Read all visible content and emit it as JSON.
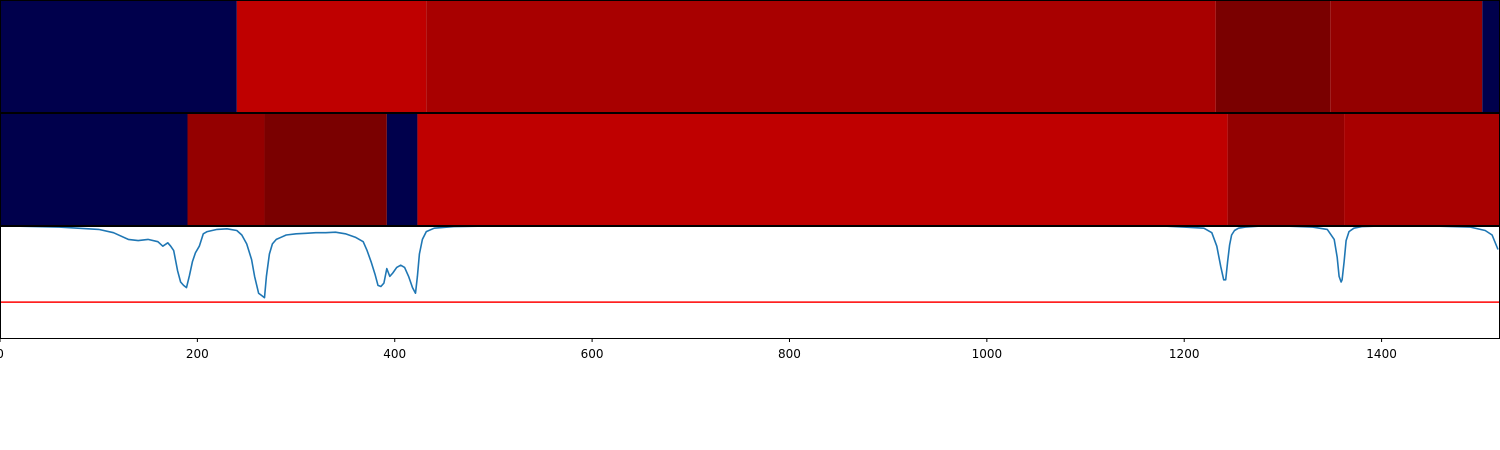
{
  "chart_data": {
    "type": "heatmap",
    "title": "",
    "xlabel": "",
    "ylabel": "",
    "xlim": [
      0,
      1520
    ],
    "grid": false,
    "legend": "none",
    "x_ticks": [
      0,
      200,
      400,
      600,
      800,
      1000,
      1200,
      1400
    ],
    "x_tick_labels": [
      "0",
      "200",
      "400",
      "600",
      "800",
      "1000",
      "1200",
      "1400"
    ],
    "heatmap_rows": [
      {
        "segments": [
          {
            "start": 0,
            "end": 240,
            "color": "#00004c"
          },
          {
            "start": 240,
            "end": 432,
            "color": "#bf0000"
          },
          {
            "start": 432,
            "end": 1232,
            "color": "#a80000"
          },
          {
            "start": 1232,
            "end": 1348,
            "color": "#7a0000"
          },
          {
            "start": 1348,
            "end": 1502,
            "color": "#940000"
          },
          {
            "start": 1502,
            "end": 1520,
            "color": "#00004c"
          }
        ]
      },
      {
        "segments": [
          {
            "start": 0,
            "end": 190,
            "color": "#00004c"
          },
          {
            "start": 190,
            "end": 268,
            "color": "#940000"
          },
          {
            "start": 268,
            "end": 392,
            "color": "#7a0000"
          },
          {
            "start": 392,
            "end": 423,
            "color": "#00004c"
          },
          {
            "start": 423,
            "end": 1244,
            "color": "#bf0000"
          },
          {
            "start": 1244,
            "end": 1362,
            "color": "#940000"
          },
          {
            "start": 1362,
            "end": 1520,
            "color": "#a80000"
          }
        ]
      }
    ],
    "line_panel": {
      "ylim": [
        0,
        1
      ],
      "threshold": 0.32,
      "threshold_color": "#ff0000",
      "series": [
        {
          "color": "#1f77b4",
          "x": [
            0,
            20,
            60,
            100,
            115,
            130,
            140,
            150,
            160,
            165,
            170,
            173,
            176,
            180,
            183,
            186,
            189,
            192,
            195,
            198,
            202,
            206,
            210,
            220,
            230,
            240,
            245,
            250,
            255,
            258,
            262,
            265,
            268,
            270,
            273,
            276,
            280,
            285,
            290,
            300,
            310,
            320,
            330,
            340,
            350,
            360,
            368,
            372,
            376,
            380,
            383,
            386,
            389,
            392,
            395,
            398,
            402,
            406,
            410,
            414,
            418,
            421,
            423,
            425,
            428,
            432,
            440,
            460,
            500,
            600,
            800,
            1000,
            1100,
            1180,
            1200,
            1220,
            1228,
            1233,
            1237,
            1240,
            1242,
            1244,
            1246,
            1248,
            1251,
            1255,
            1262,
            1275,
            1300,
            1330,
            1345,
            1352,
            1355,
            1357,
            1359,
            1360,
            1362,
            1364,
            1367,
            1372,
            1380,
            1400,
            1450,
            1490,
            1505,
            1512,
            1518
          ],
          "y": [
            0.999,
            0.998,
            0.99,
            0.97,
            0.94,
            0.88,
            0.87,
            0.88,
            0.86,
            0.82,
            0.85,
            0.82,
            0.78,
            0.6,
            0.5,
            0.47,
            0.45,
            0.56,
            0.68,
            0.76,
            0.82,
            0.93,
            0.95,
            0.97,
            0.975,
            0.96,
            0.92,
            0.84,
            0.7,
            0.55,
            0.4,
            0.38,
            0.36,
            0.55,
            0.75,
            0.84,
            0.88,
            0.9,
            0.92,
            0.93,
            0.935,
            0.94,
            0.94,
            0.945,
            0.93,
            0.9,
            0.86,
            0.78,
            0.68,
            0.57,
            0.47,
            0.46,
            0.49,
            0.62,
            0.55,
            0.58,
            0.63,
            0.65,
            0.63,
            0.55,
            0.45,
            0.4,
            0.55,
            0.75,
            0.88,
            0.95,
            0.98,
            0.995,
            1.0,
            1.0,
            1.0,
            1.0,
            1.0,
            0.999,
            0.99,
            0.98,
            0.94,
            0.82,
            0.64,
            0.52,
            0.52,
            0.68,
            0.83,
            0.92,
            0.96,
            0.98,
            0.99,
            0.998,
            1.0,
            0.99,
            0.97,
            0.88,
            0.72,
            0.55,
            0.5,
            0.52,
            0.68,
            0.87,
            0.95,
            0.98,
            0.995,
            1.0,
            1.0,
            0.99,
            0.96,
            0.92,
            0.79
          ]
        }
      ]
    }
  }
}
